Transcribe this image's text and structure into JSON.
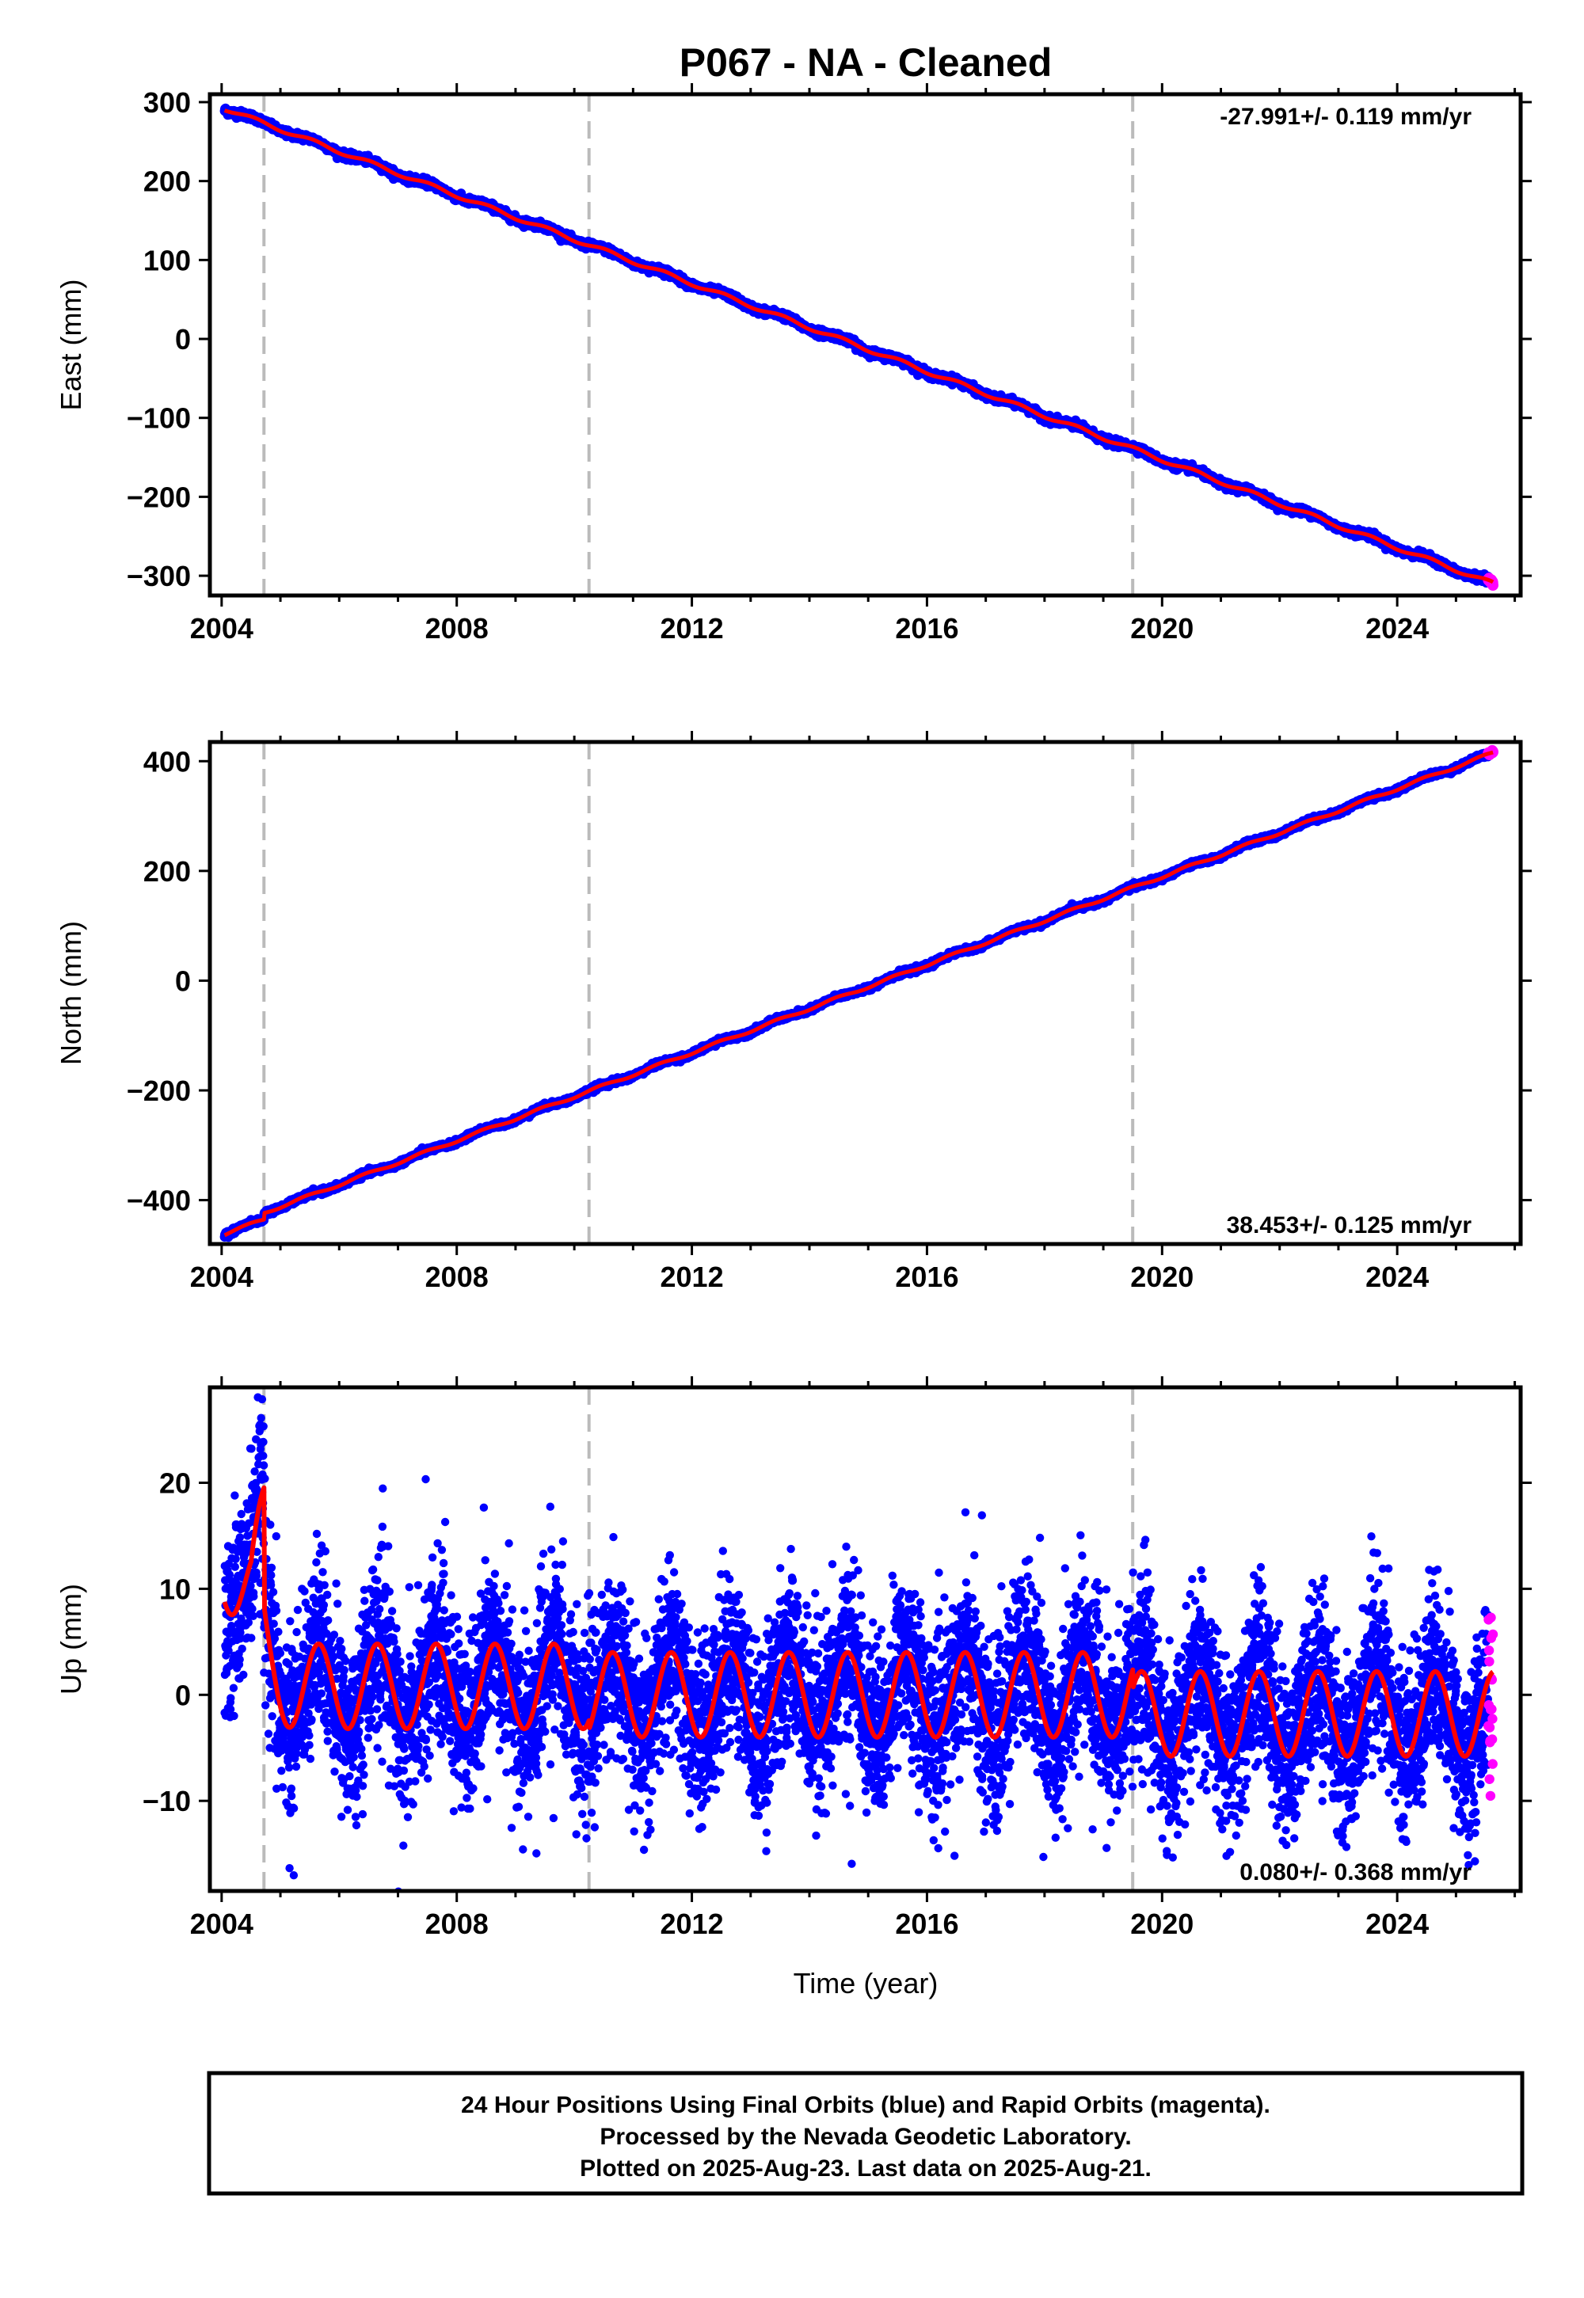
{
  "title": "P067  - NA - Cleaned",
  "xlabel": "Time (year)",
  "footer": [
    "24 Hour Positions Using Final Orbits (blue) and Rapid Orbits (magenta).",
    "Processed by the Nevada Geodetic Laboratory.",
    "Plotted on 2025-Aug-23. Last data on 2025-Aug-21."
  ],
  "colors": {
    "final": "#0000ff",
    "rapid": "#ff00ff",
    "model": "#ff0000",
    "breaks": "#bbbbbb"
  },
  "chart_data": [
    {
      "type": "scatter",
      "component": "east",
      "ylabel": "East (mm)",
      "rate_label": "-27.991+/- 0.119 mm/yr",
      "rate_position": "top-right",
      "xlim": [
        2003.8,
        2026.1
      ],
      "ylim": [
        -325,
        310
      ],
      "x_ticks": [
        2004,
        2008,
        2012,
        2016,
        2020,
        2024
      ],
      "y_ticks": [
        -300,
        -200,
        -100,
        0,
        100,
        200,
        300
      ],
      "tick_labels": [
        "−300",
        "−200",
        "−100",
        "0",
        "100",
        "200",
        "300"
      ],
      "breaks": [
        2004.72,
        2010.25,
        2019.5
      ],
      "start": [
        2004.05,
        292
      ],
      "end": [
        2025.63,
        -310
      ],
      "rate_mm_yr": -27.991,
      "series": [
        {
          "name": "Final Orbits (blue)",
          "x_range": [
            2004.05,
            2025.55
          ]
        },
        {
          "name": "Rapid Orbits (magenta)",
          "x_range": [
            2025.55,
            2025.63
          ]
        }
      ]
    },
    {
      "type": "scatter",
      "component": "north",
      "ylabel": "North (mm)",
      "rate_label": "38.453+/- 0.125 mm/yr",
      "rate_position": "bottom-right",
      "xlim": [
        2003.8,
        2026.1
      ],
      "ylim": [
        -480,
        435
      ],
      "x_ticks": [
        2004,
        2008,
        2012,
        2016,
        2020,
        2024
      ],
      "y_ticks": [
        -400,
        -200,
        0,
        200,
        400
      ],
      "tick_labels": [
        "−400",
        "−200",
        "0",
        "200",
        "400"
      ],
      "breaks": [
        2004.72,
        2010.25,
        2019.5
      ],
      "start": [
        2004.05,
        -450
      ],
      "offset_at_2004_72": 12,
      "end": [
        2025.63,
        415
      ],
      "rate_mm_yr": 38.453,
      "series": [
        {
          "name": "Final Orbits (blue)",
          "x_range": [
            2004.05,
            2025.55
          ]
        },
        {
          "name": "Rapid Orbits (magenta)",
          "x_range": [
            2025.55,
            2025.63
          ]
        }
      ]
    },
    {
      "type": "scatter",
      "component": "up",
      "ylabel": "Up (mm)",
      "rate_label": "0.080+/- 0.368 mm/yr",
      "rate_position": "bottom-right",
      "xlim": [
        2003.8,
        2026.1
      ],
      "ylim": [
        -18.5,
        29
      ],
      "x_ticks": [
        2004,
        2008,
        2012,
        2016,
        2020,
        2024
      ],
      "y_ticks": [
        -10,
        0,
        10,
        20
      ],
      "tick_labels": [
        "−10",
        "0",
        "10",
        "20"
      ],
      "breaks": [
        2004.72,
        2010.25,
        2019.5
      ],
      "rate_mm_yr": 0.08,
      "seasonal_amplitude_mm": 4,
      "scatter_std_mm": 4,
      "series": [
        {
          "name": "Final Orbits (blue)",
          "x_range": [
            2004.05,
            2025.55
          ]
        },
        {
          "name": "Rapid Orbits (magenta)",
          "x_range": [
            2025.55,
            2025.63
          ]
        }
      ]
    }
  ]
}
